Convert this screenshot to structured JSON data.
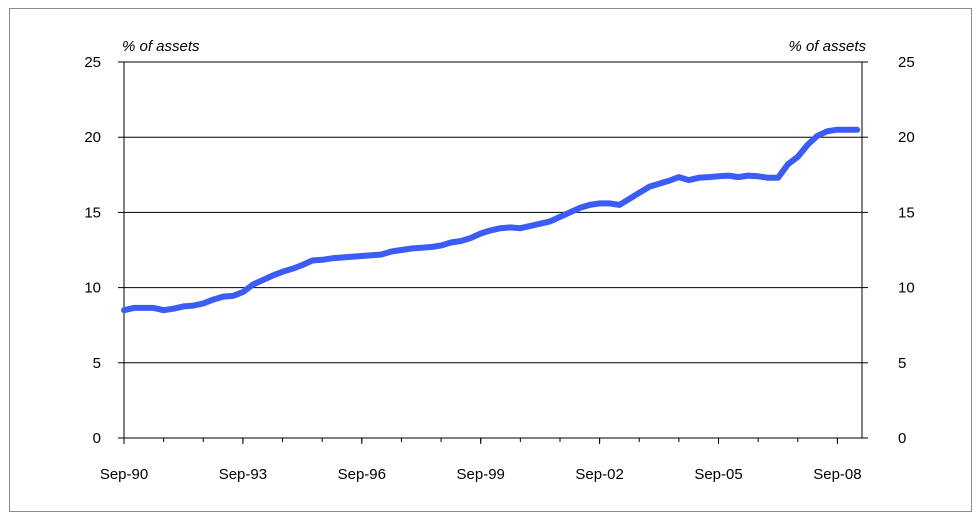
{
  "chart_data": {
    "type": "line",
    "y_unit_left": "% of assets",
    "y_unit_right": "% of assets",
    "ylim": [
      0,
      25
    ],
    "y_ticks": [
      "0",
      "5",
      "10",
      "15",
      "20",
      "25"
    ],
    "x_ticks": [
      "Sep-90",
      "Sep-93",
      "Sep-96",
      "Sep-99",
      "Sep-02",
      "Sep-05",
      "Sep-08"
    ],
    "grid": true,
    "legend": "none",
    "series": [
      {
        "color": "#3b5cf5",
        "x": [
          1990.75,
          1991.0,
          1991.5,
          1991.75,
          1992.0,
          1992.25,
          1992.5,
          1992.75,
          1993.0,
          1993.25,
          1993.5,
          1993.75,
          1994.0,
          1994.25,
          1994.5,
          1994.75,
          1995.0,
          1995.25,
          1995.5,
          1995.75,
          1996.0,
          1996.25,
          1996.5,
          1996.75,
          1997.0,
          1997.25,
          1997.5,
          1997.75,
          1998.0,
          1998.25,
          1998.5,
          1998.75,
          1999.0,
          1999.25,
          1999.5,
          1999.75,
          2000.0,
          2000.25,
          2000.5,
          2000.75,
          2001.0,
          2001.25,
          2001.5,
          2001.75,
          2002.0,
          2002.25,
          2002.5,
          2002.75,
          2003.0,
          2003.25,
          2003.5,
          2003.75,
          2004.0,
          2004.25,
          2004.5,
          2004.75,
          2005.0,
          2005.25,
          2005.5,
          2005.75,
          2006.0,
          2006.25,
          2006.5,
          2006.75,
          2007.0,
          2007.25,
          2007.5,
          2007.75,
          2008.0,
          2008.25,
          2008.5,
          2008.75,
          2009.0,
          2009.25
        ],
        "values": [
          8.5,
          8.65,
          8.65,
          8.5,
          8.6,
          8.75,
          8.8,
          8.95,
          9.2,
          9.4,
          9.45,
          9.7,
          10.2,
          10.5,
          10.8,
          11.05,
          11.25,
          11.5,
          11.8,
          11.85,
          11.95,
          12.0,
          12.05,
          12.1,
          12.15,
          12.2,
          12.4,
          12.5,
          12.6,
          12.65,
          12.7,
          12.8,
          13.0,
          13.1,
          13.3,
          13.6,
          13.8,
          13.95,
          14.0,
          13.95,
          14.1,
          14.25,
          14.4,
          14.7,
          15.0,
          15.3,
          15.5,
          15.6,
          15.6,
          15.5,
          15.9,
          16.3,
          16.7,
          16.9,
          17.1,
          17.35,
          17.15,
          17.3,
          17.35,
          17.4,
          17.45,
          17.35,
          17.45,
          17.4,
          17.3,
          17.3,
          18.2,
          18.7,
          19.5,
          20.1,
          20.4,
          20.5,
          20.5,
          20.5
        ]
      }
    ]
  }
}
